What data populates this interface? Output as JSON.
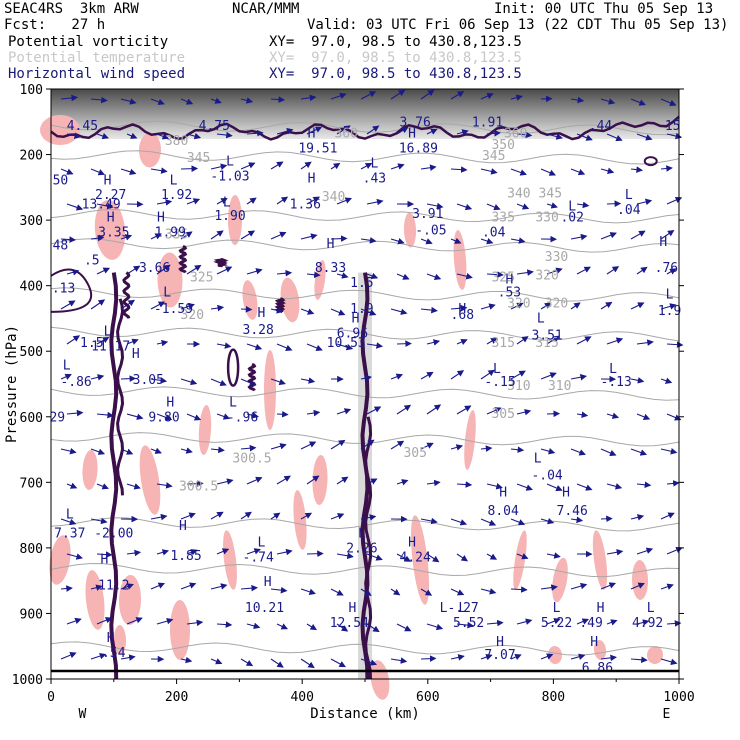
{
  "header": {
    "model": "SEAC4RS  3km ARW",
    "forecast": "Fcst:   27 h",
    "center": "NCAR/MMM",
    "init": "Init: 00 UTC Thu 05 Sep 13",
    "valid": "Valid: 03 UTC Fri 06 Sep 13 (22 CDT Thu 05 Sep 13)",
    "fields": [
      {
        "name": "Potential vorticity",
        "xy": "XY=  97.0, 98.5 to 430.8,123.5",
        "color": "#000000"
      },
      {
        "name": "Potential temperature",
        "xy": "XY=  97.0, 98.5 to 430.8,123.5",
        "color": "#c8c8c8"
      },
      {
        "name": "Horizontal wind speed",
        "xy": "XY=  97.0, 98.5 to 430.8,123.5",
        "color": "#1a1a7a"
      }
    ]
  },
  "colors": {
    "pv_positive": "#f7b4b4",
    "pv_contour": "#3a0f4a",
    "theta": "#a8a8a8",
    "wind": "#1a1a8a",
    "hl_labels": "#1a1a8a"
  },
  "chart_data": {
    "type": "cross-section",
    "xlabel": "Distance (km)",
    "ylabel": "Pressure (hPa)",
    "xlim": [
      0,
      1000
    ],
    "ylim": [
      1000,
      100
    ],
    "x_ticks": [
      "0",
      "200",
      "400",
      "600",
      "800",
      "1000"
    ],
    "y_ticks": [
      "100",
      "200",
      "300",
      "400",
      "500",
      "600",
      "700",
      "800",
      "900",
      "1000"
    ],
    "x_end_labels": {
      "left": "W",
      "right": "E"
    },
    "theta_labels": [
      {
        "x": 200,
        "p": 150,
        "text": "380"
      },
      {
        "x": 470,
        "p": 130,
        "text": "360"
      },
      {
        "x": 740,
        "p": 130,
        "text": "360"
      },
      {
        "x": 720,
        "p": 160,
        "text": "350"
      },
      {
        "x": 235,
        "p": 195,
        "text": "345"
      },
      {
        "x": 705,
        "p": 190,
        "text": "345"
      },
      {
        "x": 450,
        "p": 300,
        "text": "340"
      },
      {
        "x": 745,
        "p": 290,
        "text": "340"
      },
      {
        "x": 795,
        "p": 290,
        "text": "345"
      },
      {
        "x": 200,
        "p": 400,
        "text": "335"
      },
      {
        "x": 720,
        "p": 355,
        "text": "335"
      },
      {
        "x": 790,
        "p": 355,
        "text": "330"
      },
      {
        "x": 805,
        "p": 460,
        "text": "330"
      },
      {
        "x": 240,
        "p": 515,
        "text": "325"
      },
      {
        "x": 720,
        "p": 515,
        "text": "325"
      },
      {
        "x": 790,
        "p": 510,
        "text": "320"
      },
      {
        "x": 225,
        "p": 615,
        "text": "320"
      },
      {
        "x": 745,
        "p": 585,
        "text": "320"
      },
      {
        "x": 805,
        "p": 585,
        "text": "320"
      },
      {
        "x": 720,
        "p": 690,
        "text": "315"
      },
      {
        "x": 790,
        "p": 690,
        "text": "315"
      },
      {
        "x": 745,
        "p": 805,
        "text": "310"
      },
      {
        "x": 810,
        "p": 805,
        "text": "310"
      },
      {
        "x": 720,
        "p": 880,
        "text": "305"
      },
      {
        "x": 580,
        "p": 985,
        "text": "305"
      },
      {
        "x": 320,
        "p": 1000,
        "text": "300.5"
      },
      {
        "x": 235,
        "p": 1075,
        "text": "300.5"
      }
    ],
    "annotations": [
      {
        "x": 50,
        "p": 110,
        "text": "4.45"
      },
      {
        "x": 260,
        "p": 110,
        "text": "4.75"
      },
      {
        "x": 580,
        "p": 100,
        "text": "3.76"
      },
      {
        "x": 695,
        "p": 100,
        "text": "1.91"
      },
      {
        "x": 875,
        "p": 110,
        "text": ".44"
      },
      {
        "x": 990,
        "p": 110,
        "text": "15"
      },
      {
        "x": 415,
        "p": 130,
        "text": "H"
      },
      {
        "x": 425,
        "p": 170,
        "text": "19.51"
      },
      {
        "x": 575,
        "p": 130,
        "text": "H"
      },
      {
        "x": 585,
        "p": 170,
        "text": "16.89"
      },
      {
        "x": 515,
        "p": 210,
        "text": "L"
      },
      {
        "x": 515,
        "p": 250,
        "text": ".43"
      },
      {
        "x": 285,
        "p": 205,
        "text": "L"
      },
      {
        "x": 285,
        "p": 245,
        "text": "-1.03"
      },
      {
        "x": 15,
        "p": 255,
        "text": "50"
      },
      {
        "x": 90,
        "p": 255,
        "text": "H"
      },
      {
        "x": 95,
        "p": 295,
        "text": "2.27"
      },
      {
        "x": 80,
        "p": 320,
        "text": "13.49"
      },
      {
        "x": 195,
        "p": 255,
        "text": "L"
      },
      {
        "x": 200,
        "p": 295,
        "text": "1.92"
      },
      {
        "x": 415,
        "p": 250,
        "text": "H"
      },
      {
        "x": 405,
        "p": 320,
        "text": "1.36"
      },
      {
        "x": 280,
        "p": 315,
        "text": "L"
      },
      {
        "x": 285,
        "p": 350,
        "text": "1.90"
      },
      {
        "x": 95,
        "p": 355,
        "text": "H"
      },
      {
        "x": 100,
        "p": 395,
        "text": "3.35"
      },
      {
        "x": 175,
        "p": 355,
        "text": "H"
      },
      {
        "x": 190,
        "p": 395,
        "text": "1.99"
      },
      {
        "x": 15,
        "p": 430,
        "text": "48"
      },
      {
        "x": 65,
        "p": 470,
        "text": ".5"
      },
      {
        "x": 165,
        "p": 490,
        "text": "3.66"
      },
      {
        "x": 445,
        "p": 425,
        "text": "H"
      },
      {
        "x": 445,
        "p": 490,
        "text": "8.33"
      },
      {
        "x": 600,
        "p": 345,
        "text": "3.91"
      },
      {
        "x": 605,
        "p": 390,
        "text": "-.05"
      },
      {
        "x": 705,
        "p": 395,
        "text": ".04"
      },
      {
        "x": 830,
        "p": 325,
        "text": "L"
      },
      {
        "x": 830,
        "p": 355,
        "text": ".02"
      },
      {
        "x": 920,
        "p": 295,
        "text": "L"
      },
      {
        "x": 920,
        "p": 335,
        "text": ".04"
      },
      {
        "x": 975,
        "p": 420,
        "text": "H"
      },
      {
        "x": 980,
        "p": 490,
        "text": ".76"
      },
      {
        "x": 20,
        "p": 545,
        "text": ".13"
      },
      {
        "x": 185,
        "p": 555,
        "text": "L"
      },
      {
        "x": 195,
        "p": 600,
        "text": "-1.59"
      },
      {
        "x": 495,
        "p": 530,
        "text": "1.5"
      },
      {
        "x": 495,
        "p": 600,
        "text": "1.9"
      },
      {
        "x": 655,
        "p": 600,
        "text": "H"
      },
      {
        "x": 655,
        "p": 615,
        "text": ".68"
      },
      {
        "x": 730,
        "p": 520,
        "text": "H"
      },
      {
        "x": 730,
        "p": 555,
        "text": ".53"
      },
      {
        "x": 985,
        "p": 560,
        "text": "L"
      },
      {
        "x": 985,
        "p": 605,
        "text": "1.9"
      },
      {
        "x": 335,
        "p": 610,
        "text": "H"
      },
      {
        "x": 330,
        "p": 655,
        "text": "3.28"
      },
      {
        "x": 485,
        "p": 625,
        "text": "H"
      },
      {
        "x": 480,
        "p": 665,
        "text": "6.96"
      },
      {
        "x": 780,
        "p": 625,
        "text": "L"
      },
      {
        "x": 790,
        "p": 670,
        "text": "3.51"
      },
      {
        "x": 90,
        "p": 660,
        "text": "L"
      },
      {
        "x": 95,
        "p": 700,
        "text": "11.17"
      },
      {
        "x": 65,
        "p": 690,
        "text": "1.5"
      },
      {
        "x": 470,
        "p": 690,
        "text": "10.53"
      },
      {
        "x": 135,
        "p": 720,
        "text": "H"
      },
      {
        "x": 155,
        "p": 790,
        "text": "3.05"
      },
      {
        "x": 25,
        "p": 750,
        "text": "L"
      },
      {
        "x": 40,
        "p": 795,
        "text": "-.86"
      },
      {
        "x": 710,
        "p": 760,
        "text": "L"
      },
      {
        "x": 715,
        "p": 795,
        "text": "-.15"
      },
      {
        "x": 895,
        "p": 760,
        "text": "L"
      },
      {
        "x": 900,
        "p": 795,
        "text": "-.13"
      },
      {
        "x": 190,
        "p": 850,
        "text": "H"
      },
      {
        "x": 180,
        "p": 890,
        "text": "9.80"
      },
      {
        "x": 290,
        "p": 850,
        "text": "L"
      },
      {
        "x": 305,
        "p": 890,
        "text": "-.96"
      },
      {
        "x": 10,
        "p": 890,
        "text": "29"
      },
      {
        "x": 775,
        "p": 1000,
        "text": "L"
      },
      {
        "x": 790,
        "p": 1045,
        "text": "-.04"
      },
      {
        "x": 720,
        "p": 1090,
        "text": "H"
      },
      {
        "x": 720,
        "p": 1140,
        "text": "8.04"
      },
      {
        "x": 820,
        "p": 1090,
        "text": "H"
      },
      {
        "x": 830,
        "p": 1140,
        "text": "7.46"
      },
      {
        "x": 30,
        "p": 1150,
        "text": "L"
      },
      {
        "x": 30,
        "p": 1200,
        "text": "7.37"
      },
      {
        "x": 100,
        "p": 1200,
        "text": "-2.00"
      },
      {
        "x": 210,
        "p": 1180,
        "text": "H"
      },
      {
        "x": 215,
        "p": 1260,
        "text": "1.85"
      },
      {
        "x": 335,
        "p": 1225,
        "text": "L"
      },
      {
        "x": 330,
        "p": 1265,
        "text": "-.74"
      },
      {
        "x": 495,
        "p": 1200,
        "text": "L"
      },
      {
        "x": 495,
        "p": 1240,
        "text": "2.26"
      },
      {
        "x": 575,
        "p": 1225,
        "text": "H"
      },
      {
        "x": 580,
        "p": 1265,
        "text": "4.24"
      },
      {
        "x": 85,
        "p": 1270,
        "text": "H"
      },
      {
        "x": 100,
        "p": 1340,
        "text": "11.2"
      },
      {
        "x": 345,
        "p": 1330,
        "text": "H"
      },
      {
        "x": 340,
        "p": 1400,
        "text": "10.21"
      },
      {
        "x": 480,
        "p": 1400,
        "text": "H"
      },
      {
        "x": 475,
        "p": 1440,
        "text": "12.54"
      },
      {
        "x": 655,
        "p": 1400,
        "text": "L"
      },
      {
        "x": 650,
        "p": 1400,
        "text": "L-.27"
      },
      {
        "x": 665,
        "p": 1440,
        "text": "5.52"
      },
      {
        "x": 805,
        "p": 1400,
        "text": "L"
      },
      {
        "x": 805,
        "p": 1440,
        "text": "5.22"
      },
      {
        "x": 860,
        "p": 1440,
        "text": ".49"
      },
      {
        "x": 875,
        "p": 1400,
        "text": "H"
      },
      {
        "x": 955,
        "p": 1400,
        "text": "L"
      },
      {
        "x": 950,
        "p": 1440,
        "text": "4.92"
      },
      {
        "x": 95,
        "p": 1480,
        "text": "H"
      },
      {
        "x": 100,
        "p": 1520,
        "text": ".54"
      },
      {
        "x": 715,
        "p": 1490,
        "text": "H"
      },
      {
        "x": 715,
        "p": 1525,
        "text": "7.07"
      },
      {
        "x": 865,
        "p": 1490,
        "text": "H"
      },
      {
        "x": 870,
        "p": 1560,
        "text": "6.86"
      }
    ]
  }
}
